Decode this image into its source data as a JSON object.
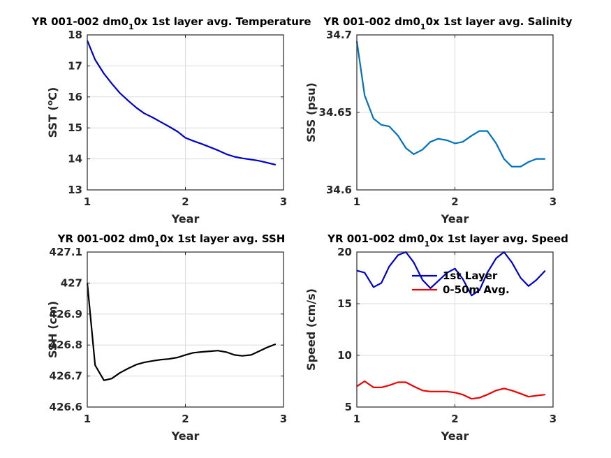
{
  "chart_data": [
    {
      "type": "line",
      "title_parts": [
        "YR 001-002 dm0",
        "1",
        "0x 1st layer avg. Temperature"
      ],
      "xlabel": "Year",
      "ylabel": "SST (°C)",
      "ylabel_parts": [
        "SST (",
        "o",
        "C)"
      ],
      "xlim": [
        1,
        3
      ],
      "ylim": [
        13,
        18
      ],
      "xticks": [
        1,
        2,
        3
      ],
      "xtick_labels": [
        "1",
        "2",
        "3"
      ],
      "yticks": [
        13,
        14,
        15,
        16,
        17,
        18
      ],
      "ytick_labels": [
        "13",
        "14",
        "15",
        "16",
        "17",
        "18"
      ],
      "grid": true,
      "series": [
        {
          "color": "#0000cc",
          "x": [
            1.0,
            1.08,
            1.17,
            1.25,
            1.33,
            1.42,
            1.5,
            1.58,
            1.67,
            1.75,
            1.83,
            1.92,
            2.0,
            2.08,
            2.17,
            2.25,
            2.33,
            2.42,
            2.5,
            2.58,
            2.67,
            2.75,
            2.83,
            2.92
          ],
          "y": [
            17.82,
            17.2,
            16.75,
            16.43,
            16.13,
            15.87,
            15.65,
            15.47,
            15.33,
            15.19,
            15.05,
            14.88,
            14.68,
            14.58,
            14.48,
            14.38,
            14.28,
            14.15,
            14.07,
            14.02,
            13.98,
            13.94,
            13.88,
            13.81
          ]
        }
      ]
    },
    {
      "type": "line",
      "title_parts": [
        "YR 001-002 dm0",
        "1",
        "0x 1st layer avg. Salinity"
      ],
      "xlabel": "Year",
      "ylabel": "SSS (psu)",
      "xlim": [
        1,
        3
      ],
      "ylim": [
        34.6,
        34.7
      ],
      "xticks": [
        1,
        2,
        3
      ],
      "xtick_labels": [
        "1",
        "2",
        "3"
      ],
      "yticks": [
        34.6,
        34.65,
        34.7
      ],
      "ytick_labels": [
        "34.6",
        "34.65",
        "34.7"
      ],
      "grid": true,
      "series": [
        {
          "color": "#0072bd",
          "x": [
            1.0,
            1.08,
            1.17,
            1.25,
            1.33,
            1.42,
            1.5,
            1.58,
            1.67,
            1.75,
            1.83,
            1.92,
            2.0,
            2.08,
            2.17,
            2.25,
            2.33,
            2.42,
            2.5,
            2.58,
            2.67,
            2.75,
            2.83,
            2.92
          ],
          "y": [
            34.696,
            34.661,
            34.646,
            34.642,
            34.641,
            34.635,
            34.627,
            34.623,
            34.626,
            34.631,
            34.633,
            34.632,
            34.63,
            34.631,
            34.635,
            34.638,
            34.638,
            34.63,
            34.62,
            34.615,
            34.615,
            34.618,
            34.62,
            34.62
          ]
        }
      ]
    },
    {
      "type": "line",
      "title_parts": [
        "YR 001-002 dm0",
        "1",
        "0x 1st layer avg. SSH"
      ],
      "xlabel": "Year",
      "ylabel": "SSH (cm)",
      "xlim": [
        1,
        3
      ],
      "ylim": [
        426.6,
        427.1
      ],
      "xticks": [
        1,
        2,
        3
      ],
      "xtick_labels": [
        "1",
        "2",
        "3"
      ],
      "yticks": [
        426.6,
        426.7,
        426.8,
        426.9,
        427,
        427.1
      ],
      "ytick_labels": [
        "426.6",
        "426.7",
        "426.8",
        "426.9",
        "427",
        "427.1"
      ],
      "grid": true,
      "series": [
        {
          "color": "#000000",
          "x": [
            1.0,
            1.08,
            1.17,
            1.25,
            1.33,
            1.42,
            1.5,
            1.58,
            1.67,
            1.75,
            1.83,
            1.92,
            2.0,
            2.08,
            2.17,
            2.25,
            2.33,
            2.42,
            2.5,
            2.58,
            2.67,
            2.75,
            2.83,
            2.92
          ],
          "y": [
            427.0,
            426.735,
            426.686,
            426.692,
            426.71,
            426.725,
            426.737,
            426.744,
            426.749,
            426.753,
            426.755,
            426.76,
            426.768,
            426.775,
            426.778,
            426.78,
            426.782,
            426.777,
            426.768,
            426.765,
            426.768,
            426.78,
            426.792,
            426.803
          ]
        }
      ]
    },
    {
      "type": "line",
      "title_parts": [
        "YR 001-002 dm0",
        "1",
        "0x 1st layer avg. Speed"
      ],
      "xlabel": "Year",
      "ylabel": "Speed (cm/s)",
      "xlim": [
        1,
        3
      ],
      "ylim": [
        5,
        20
      ],
      "xticks": [
        1,
        2,
        3
      ],
      "xtick_labels": [
        "1",
        "2",
        "3"
      ],
      "yticks": [
        5,
        10,
        15,
        20
      ],
      "ytick_labels": [
        "5",
        "10",
        "15",
        "20"
      ],
      "grid": true,
      "legend": "top-right",
      "series": [
        {
          "name": "1st Layer",
          "color": "#0000cc",
          "x": [
            1.0,
            1.08,
            1.17,
            1.25,
            1.33,
            1.42,
            1.5,
            1.58,
            1.67,
            1.75,
            1.83,
            1.92,
            2.0,
            2.08,
            2.17,
            2.25,
            2.33,
            2.42,
            2.5,
            2.58,
            2.67,
            2.75,
            2.83,
            2.92
          ],
          "y": [
            18.2,
            18.0,
            16.6,
            17.0,
            18.6,
            19.7,
            20.0,
            19.0,
            17.3,
            16.5,
            17.2,
            18.0,
            18.4,
            17.4,
            15.8,
            16.3,
            18.0,
            19.4,
            20.0,
            19.0,
            17.5,
            16.7,
            17.3,
            18.2
          ]
        },
        {
          "name": "0-50m Avg.",
          "color": "#ee0000",
          "x": [
            1.0,
            1.08,
            1.17,
            1.25,
            1.33,
            1.42,
            1.5,
            1.58,
            1.67,
            1.75,
            1.83,
            1.92,
            2.0,
            2.08,
            2.17,
            2.25,
            2.33,
            2.42,
            2.5,
            2.58,
            2.67,
            2.75,
            2.83,
            2.92
          ],
          "y": [
            7.0,
            7.5,
            6.9,
            6.9,
            7.1,
            7.4,
            7.4,
            7.0,
            6.6,
            6.5,
            6.5,
            6.5,
            6.4,
            6.2,
            5.8,
            5.9,
            6.2,
            6.6,
            6.8,
            6.6,
            6.3,
            6.0,
            6.1,
            6.2
          ]
        }
      ]
    }
  ]
}
